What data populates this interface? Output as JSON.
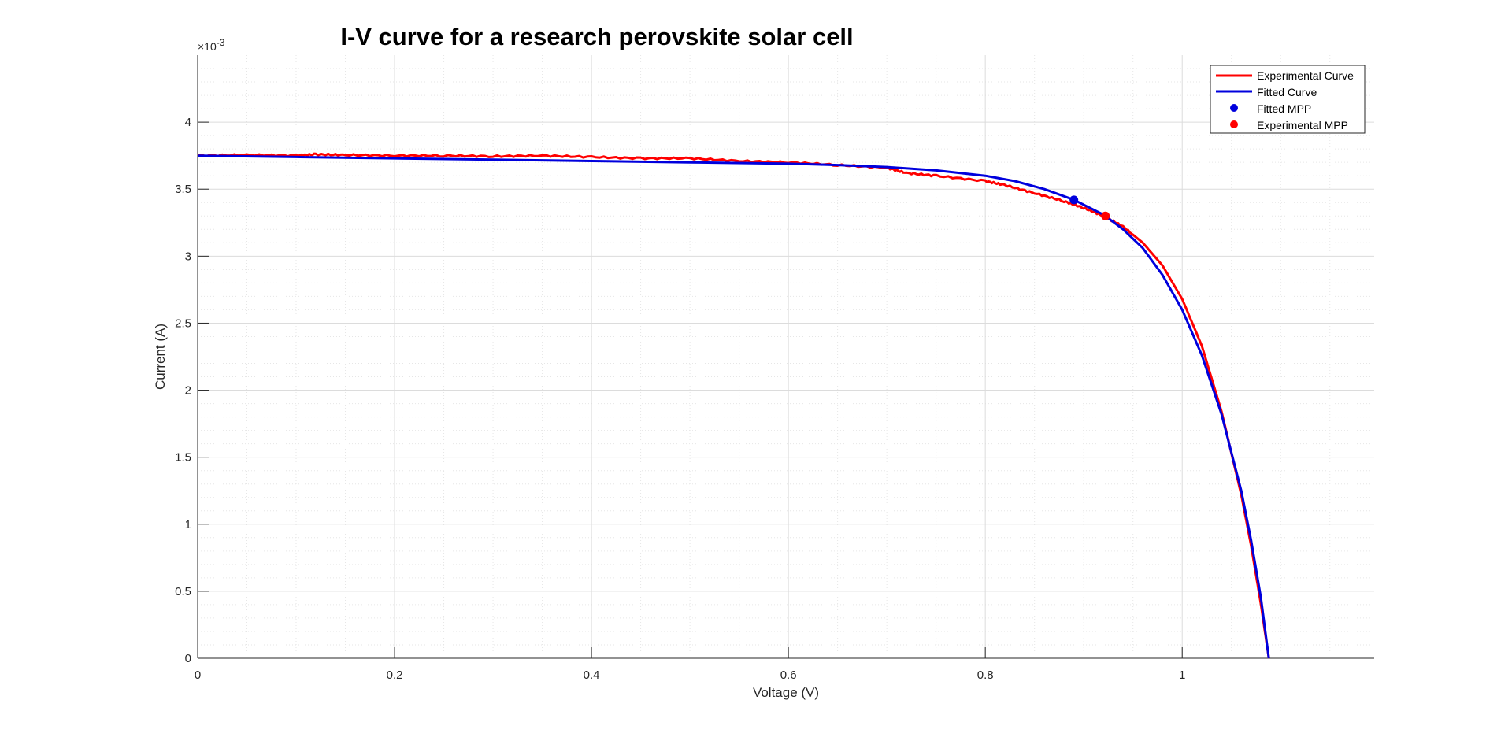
{
  "chart_data": {
    "type": "line",
    "title": "I-V curve for a research perovskite solar cell",
    "xlabel": "Voltage (V)",
    "ylabel": "Current (A)",
    "y_exponent_label": "×10",
    "y_exponent_power": "-3",
    "xlim": [
      0,
      1.195
    ],
    "ylim": [
      0,
      4.5
    ],
    "y_scale_factor": 0.001,
    "x_ticks": [
      0,
      0.2,
      0.4,
      0.6,
      0.8,
      1
    ],
    "x_tick_labels": [
      "0",
      "0.2",
      "0.4",
      "0.6",
      "0.8",
      "1"
    ],
    "y_ticks": [
      0,
      0.5,
      1,
      1.5,
      2,
      2.5,
      3,
      3.5,
      4
    ],
    "y_tick_labels": [
      "0",
      "0.5",
      "1",
      "1.5",
      "2",
      "2.5",
      "3",
      "3.5",
      "4"
    ],
    "grid": true,
    "minor_grid": true,
    "legend_position": "top-right",
    "series": [
      {
        "name": "Experimental Curve",
        "color": "#ff0000",
        "x": [
          0,
          0.05,
          0.1,
          0.12,
          0.15,
          0.2,
          0.25,
          0.3,
          0.35,
          0.4,
          0.45,
          0.5,
          0.55,
          0.6,
          0.65,
          0.7,
          0.72,
          0.75,
          0.8,
          0.82,
          0.85,
          0.88,
          0.9,
          0.92,
          0.94,
          0.96,
          0.98,
          1.0,
          1.02,
          1.04,
          1.06,
          1.07,
          1.08,
          1.088
        ],
        "y": [
          3.75,
          3.755,
          3.75,
          3.76,
          3.755,
          3.75,
          3.75,
          3.745,
          3.75,
          3.74,
          3.73,
          3.73,
          3.71,
          3.7,
          3.68,
          3.66,
          3.62,
          3.6,
          3.56,
          3.53,
          3.47,
          3.41,
          3.36,
          3.3,
          3.22,
          3.1,
          2.93,
          2.68,
          2.33,
          1.84,
          1.22,
          0.84,
          0.4,
          0.0
        ]
      },
      {
        "name": "Fitted Curve",
        "color": "#0000dd",
        "x": [
          0,
          0.1,
          0.2,
          0.3,
          0.4,
          0.5,
          0.6,
          0.65,
          0.7,
          0.75,
          0.8,
          0.83,
          0.86,
          0.89,
          0.92,
          0.94,
          0.96,
          0.98,
          1.0,
          1.02,
          1.04,
          1.06,
          1.07,
          1.08,
          1.088
        ],
        "y": [
          3.75,
          3.74,
          3.73,
          3.72,
          3.71,
          3.7,
          3.69,
          3.68,
          3.665,
          3.64,
          3.6,
          3.56,
          3.5,
          3.42,
          3.31,
          3.2,
          3.06,
          2.86,
          2.6,
          2.26,
          1.82,
          1.25,
          0.88,
          0.45,
          0.0
        ]
      }
    ],
    "points": [
      {
        "name": "Fitted MPP",
        "color": "#0000dd",
        "x": 0.89,
        "y": 3.42
      },
      {
        "name": "Experimental MPP",
        "color": "#ff0000",
        "x": 0.922,
        "y": 3.3
      }
    ]
  }
}
